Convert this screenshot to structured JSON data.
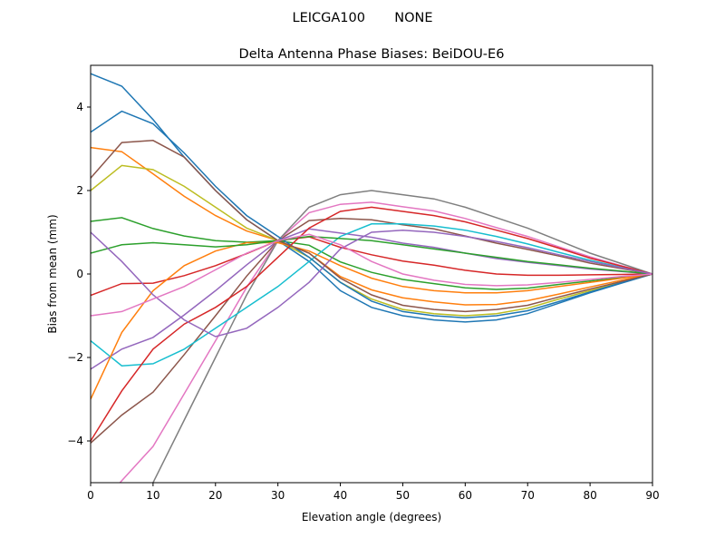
{
  "chart_data": {
    "type": "line",
    "suptitle": "LEICGA100       NONE",
    "title": "Delta Antenna Phase Biases: BeiDOU-E6",
    "xlabel": "Elevation angle (degrees)",
    "ylabel": "Bias from mean (mm)",
    "xlim": [
      0,
      90
    ],
    "ylim": [
      -5,
      5
    ],
    "xticks": [
      "0",
      "10",
      "20",
      "30",
      "40",
      "50",
      "60",
      "70",
      "80",
      "90"
    ],
    "yticks": [
      "−4",
      "−2",
      "0",
      "2",
      "4"
    ],
    "xtick_values": [
      0,
      10,
      20,
      30,
      40,
      50,
      60,
      70,
      80,
      90
    ],
    "ytick_values": [
      -4,
      -2,
      0,
      2,
      4
    ],
    "grid": false,
    "legend": "none",
    "colors": [
      "#1f77b4",
      "#ff7f0e",
      "#2ca02c",
      "#d62728",
      "#9467bd",
      "#8c564b",
      "#e377c2",
      "#7f7f7f",
      "#bcbd22",
      "#17becf"
    ],
    "x": [
      0,
      5,
      10,
      15,
      20,
      25,
      30,
      35,
      40,
      45,
      50,
      55,
      60,
      65,
      70,
      75,
      80,
      85,
      90
    ],
    "series": [
      {
        "values": [
          4.8,
          4.5,
          3.7,
          2.8,
          2.0,
          1.3,
          0.8,
          0.3,
          -0.4,
          -0.8,
          -1.0,
          -1.1,
          -1.15,
          -1.1,
          -0.95,
          -0.7,
          -0.45,
          -0.22,
          0
        ]
      },
      {
        "values": [
          3.03,
          2.93,
          2.4,
          1.86,
          1.4,
          1.03,
          0.8,
          0.5,
          -0.06,
          -0.38,
          -0.57,
          -0.67,
          -0.74,
          -0.73,
          -0.64,
          -0.48,
          -0.31,
          -0.15,
          0
        ]
      },
      {
        "values": [
          1.26,
          1.35,
          1.09,
          0.91,
          0.8,
          0.76,
          0.8,
          0.69,
          0.29,
          0.04,
          -0.13,
          -0.23,
          -0.33,
          -0.37,
          -0.34,
          -0.25,
          -0.17,
          -0.08,
          0
        ]
      },
      {
        "values": [
          -0.51,
          -0.23,
          -0.22,
          -0.04,
          0.2,
          0.49,
          0.8,
          0.89,
          0.64,
          0.46,
          0.31,
          0.21,
          0.09,
          0.0,
          -0.03,
          -0.03,
          -0.02,
          -0.01,
          0
        ]
      },
      {
        "values": [
          -2.28,
          -1.8,
          -1.52,
          -0.98,
          -0.4,
          0.22,
          0.8,
          1.08,
          0.98,
          0.88,
          0.74,
          0.64,
          0.5,
          0.37,
          0.28,
          0.2,
          0.12,
          0.06,
          0
        ]
      },
      {
        "values": [
          -4.05,
          -3.38,
          -2.83,
          -1.93,
          -1.0,
          -0.05,
          0.8,
          1.28,
          1.33,
          1.3,
          1.18,
          1.08,
          0.91,
          0.74,
          0.59,
          0.43,
          0.26,
          0.13,
          0
        ]
      },
      {
        "values": [
          -5.82,
          -4.95,
          -4.13,
          -2.87,
          -1.6,
          -0.32,
          0.8,
          1.47,
          1.67,
          1.72,
          1.61,
          1.51,
          1.33,
          1.11,
          0.9,
          0.65,
          0.41,
          0.2,
          0
        ]
      },
      {
        "values": [
          -7,
          -6,
          -5,
          -3.5,
          -2,
          -0.5,
          0.8,
          1.6,
          1.9,
          2.0,
          1.9,
          1.8,
          1.6,
          1.35,
          1.1,
          0.8,
          0.5,
          0.25,
          0
        ]
      },
      {
        "values": [
          2.0,
          2.6,
          2.5,
          2.1,
          1.6,
          1.1,
          0.8,
          0.4,
          -0.2,
          -0.6,
          -0.85,
          -0.95,
          -1.0,
          -0.95,
          -0.82,
          -0.6,
          -0.4,
          -0.2,
          0
        ]
      },
      {
        "values": [
          -1.6,
          -2.2,
          -2.15,
          -1.8,
          -1.3,
          -0.8,
          -0.3,
          0.3,
          0.9,
          1.2,
          1.2,
          1.15,
          1.05,
          0.9,
          0.72,
          0.52,
          0.33,
          0.16,
          0
        ]
      },
      {
        "values": [
          3.4,
          3.9,
          3.6,
          2.9,
          2.1,
          1.4,
          0.9,
          0.4,
          -0.2,
          -0.65,
          -0.9,
          -1.0,
          -1.05,
          -1.0,
          -0.88,
          -0.66,
          -0.43,
          -0.21,
          0
        ]
      },
      {
        "values": [
          -3.0,
          -1.4,
          -0.4,
          0.2,
          0.55,
          0.75,
          0.75,
          0.55,
          0.2,
          -0.1,
          -0.3,
          -0.4,
          -0.45,
          -0.45,
          -0.4,
          -0.3,
          -0.2,
          -0.1,
          0
        ]
      },
      {
        "values": [
          0.5,
          0.7,
          0.75,
          0.7,
          0.65,
          0.7,
          0.8,
          0.9,
          0.85,
          0.8,
          0.7,
          0.6,
          0.5,
          0.4,
          0.3,
          0.22,
          0.14,
          0.07,
          0
        ]
      },
      {
        "values": [
          -4.0,
          -2.8,
          -1.8,
          -1.2,
          -0.8,
          -0.3,
          0.4,
          1.1,
          1.5,
          1.6,
          1.5,
          1.4,
          1.25,
          1.05,
          0.85,
          0.62,
          0.38,
          0.19,
          0
        ]
      },
      {
        "values": [
          1.0,
          0.3,
          -0.5,
          -1.1,
          -1.5,
          -1.3,
          -0.8,
          -0.2,
          0.6,
          1.0,
          1.05,
          1.0,
          0.9,
          0.78,
          0.63,
          0.46,
          0.3,
          0.15,
          0
        ]
      },
      {
        "values": [
          2.3,
          3.15,
          3.2,
          2.8,
          2.0,
          1.3,
          0.8,
          0.5,
          -0.1,
          -0.5,
          -0.75,
          -0.85,
          -0.9,
          -0.85,
          -0.75,
          -0.55,
          -0.36,
          -0.18,
          0
        ]
      },
      {
        "values": [
          -1.0,
          -0.9,
          -0.6,
          -0.3,
          0.1,
          0.5,
          0.8,
          0.95,
          0.7,
          0.3,
          0.0,
          -0.15,
          -0.25,
          -0.28,
          -0.26,
          -0.2,
          -0.13,
          -0.06,
          0
        ]
      }
    ]
  }
}
